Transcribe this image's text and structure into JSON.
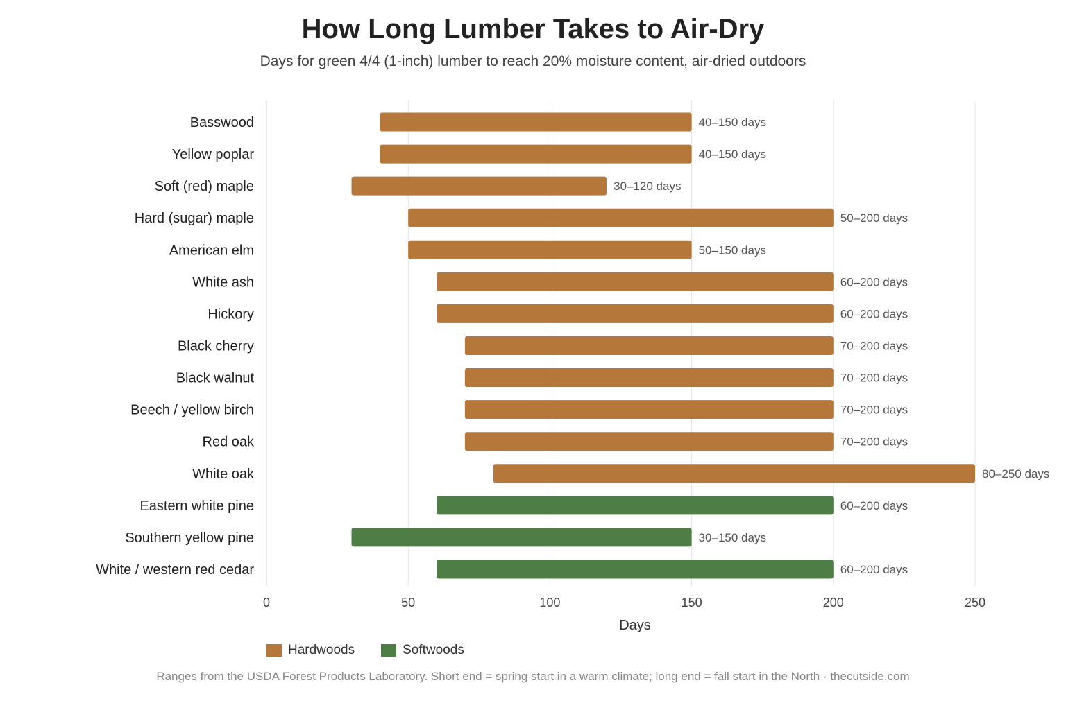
{
  "header": {
    "title": "How Long Lumber Takes to Air-Dry",
    "subtitle": "Days for green 4/4 (1-inch) lumber to reach 20% moisture content, air-dried outdoors"
  },
  "legend": {
    "items": [
      {
        "label": "Hardwoods",
        "color": "#b5783a"
      },
      {
        "label": "Softwoods",
        "color": "#4e7d46"
      }
    ]
  },
  "footnote": "Ranges from the USDA Forest Products Laboratory. Short end = spring start in a warm climate; long end = fall start in the North · thecutside.com",
  "chart_data": {
    "type": "bar",
    "orientation": "horizontal-range",
    "title": "How Long Lumber Takes to Air-Dry",
    "subtitle": "Days for green 4/4 (1-inch) lumber to reach 20% moisture content, air-dried outdoors",
    "xlabel": "Days",
    "ylabel": "",
    "xlim": [
      0,
      250
    ],
    "xticks": [
      0,
      50,
      100,
      150,
      200,
      250
    ],
    "grid": true,
    "legend_position": "bottom-left",
    "series_colors": {
      "Hardwoods": "#b5783a",
      "Softwoods": "#4e7d46"
    },
    "categories": [
      "Basswood",
      "Yellow poplar",
      "Soft (red) maple",
      "Hard (sugar) maple",
      "American elm",
      "White ash",
      "Hickory",
      "Black cherry",
      "Black walnut",
      "Beech / yellow birch",
      "Red oak",
      "White oak",
      "Eastern white pine",
      "Southern yellow pine",
      "White / western red cedar"
    ],
    "bars": [
      {
        "category": "Basswood",
        "start": 40,
        "end": 150,
        "group": "Hardwoods",
        "label": "40–150 days"
      },
      {
        "category": "Yellow poplar",
        "start": 40,
        "end": 150,
        "group": "Hardwoods",
        "label": "40–150 days"
      },
      {
        "category": "Soft (red) maple",
        "start": 30,
        "end": 120,
        "group": "Hardwoods",
        "label": "30–120 days"
      },
      {
        "category": "Hard (sugar) maple",
        "start": 50,
        "end": 200,
        "group": "Hardwoods",
        "label": "50–200 days"
      },
      {
        "category": "American elm",
        "start": 50,
        "end": 150,
        "group": "Hardwoods",
        "label": "50–150 days"
      },
      {
        "category": "White ash",
        "start": 60,
        "end": 200,
        "group": "Hardwoods",
        "label": "60–200 days"
      },
      {
        "category": "Hickory",
        "start": 60,
        "end": 200,
        "group": "Hardwoods",
        "label": "60–200 days"
      },
      {
        "category": "Black cherry",
        "start": 70,
        "end": 200,
        "group": "Hardwoods",
        "label": "70–200 days"
      },
      {
        "category": "Black walnut",
        "start": 70,
        "end": 200,
        "group": "Hardwoods",
        "label": "70–200 days"
      },
      {
        "category": "Beech / yellow birch",
        "start": 70,
        "end": 200,
        "group": "Hardwoods",
        "label": "70–200 days"
      },
      {
        "category": "Red oak",
        "start": 70,
        "end": 200,
        "group": "Hardwoods",
        "label": "70–200 days"
      },
      {
        "category": "White oak",
        "start": 80,
        "end": 250,
        "group": "Hardwoods",
        "label": "80–250 days"
      },
      {
        "category": "Eastern white pine",
        "start": 60,
        "end": 200,
        "group": "Softwoods",
        "label": "60–200 days"
      },
      {
        "category": "Southern yellow pine",
        "start": 30,
        "end": 150,
        "group": "Softwoods",
        "label": "30–150 days"
      },
      {
        "category": "White / western red cedar",
        "start": 60,
        "end": 200,
        "group": "Softwoods",
        "label": "60–200 days"
      }
    ]
  }
}
